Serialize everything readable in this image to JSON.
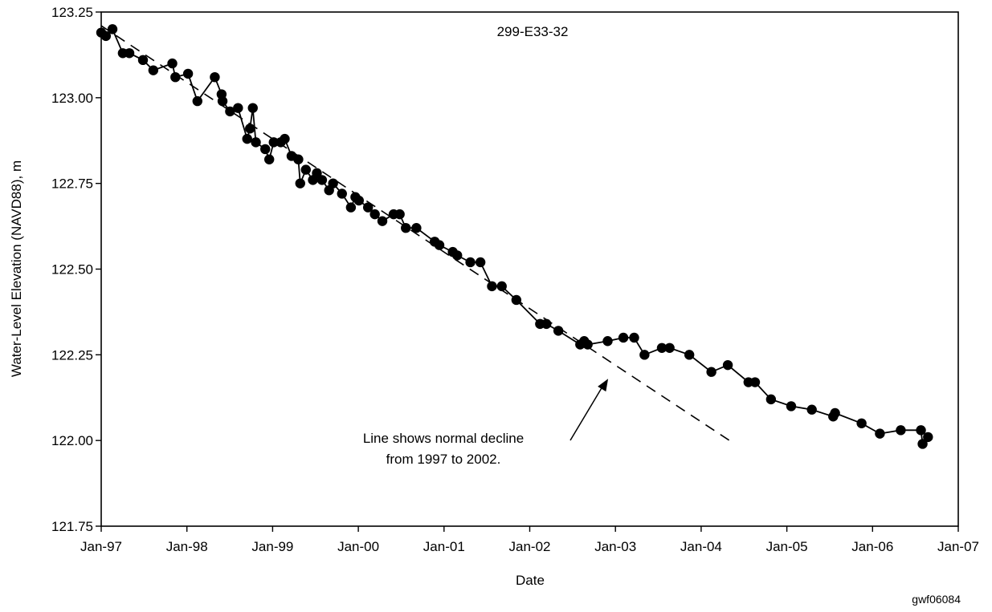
{
  "chart_data": {
    "type": "line",
    "title": "299-E33-32",
    "xlabel": "Date",
    "ylabel": "Water-Level Elevation (NAVD88), m",
    "xlim": [
      "1997-01-01",
      "2007-01-01"
    ],
    "ylim": [
      121.75,
      123.25
    ],
    "x_ticks": [
      "Jan-97",
      "Jan-98",
      "Jan-99",
      "Jan-00",
      "Jan-01",
      "Jan-02",
      "Jan-03",
      "Jan-04",
      "Jan-05",
      "Jan-06",
      "Jan-07"
    ],
    "y_ticks": [
      "123.25",
      "123.00",
      "122.75",
      "122.50",
      "122.25",
      "122.00",
      "121.75"
    ],
    "grid": false,
    "series": [
      {
        "values": [
          [
            "1997-01-01",
            123.19
          ],
          [
            "1997-01-21",
            123.18
          ],
          [
            "1997-02-18",
            123.2
          ],
          [
            "1997-04-03",
            123.13
          ],
          [
            "1997-05-01",
            123.13
          ],
          [
            "1997-06-28",
            123.11
          ],
          [
            "1997-08-11",
            123.08
          ],
          [
            "1997-10-31",
            123.1
          ],
          [
            "1997-11-13",
            123.06
          ],
          [
            "1998-01-06",
            123.07
          ],
          [
            "1998-02-15",
            122.99
          ],
          [
            "1998-04-30",
            123.06
          ],
          [
            "1998-05-29",
            123.01
          ],
          [
            "1998-06-02",
            122.99
          ],
          [
            "1998-07-04",
            122.96
          ],
          [
            "1998-08-07",
            122.97
          ],
          [
            "1998-09-15",
            122.88
          ],
          [
            "1998-09-27",
            122.91
          ],
          [
            "1998-10-09",
            122.97
          ],
          [
            "1998-10-22",
            122.87
          ],
          [
            "1998-12-01",
            122.85
          ],
          [
            "1998-12-18",
            122.82
          ],
          [
            "1999-01-06",
            122.87
          ],
          [
            "1999-02-05",
            122.87
          ],
          [
            "1999-02-22",
            122.88
          ],
          [
            "1999-03-23",
            122.83
          ],
          [
            "1999-04-21",
            122.82
          ],
          [
            "1999-04-29",
            122.75
          ],
          [
            "1999-05-23",
            122.79
          ],
          [
            "1999-06-22",
            122.76
          ],
          [
            "1999-07-09",
            122.78
          ],
          [
            "1999-07-31",
            122.76
          ],
          [
            "1999-08-30",
            122.73
          ],
          [
            "1999-09-16",
            122.75
          ],
          [
            "1999-10-24",
            122.72
          ],
          [
            "1999-12-01",
            122.68
          ],
          [
            "1999-12-20",
            122.71
          ],
          [
            "2000-01-04",
            122.7
          ],
          [
            "2000-02-12",
            122.68
          ],
          [
            "2000-03-12",
            122.66
          ],
          [
            "2000-04-13",
            122.64
          ],
          [
            "2000-05-31",
            122.66
          ],
          [
            "2000-06-26",
            122.66
          ],
          [
            "2000-07-22",
            122.62
          ],
          [
            "2000-09-05",
            122.62
          ],
          [
            "2000-11-22",
            122.58
          ],
          [
            "2000-12-12",
            122.57
          ],
          [
            "2001-02-07",
            122.55
          ],
          [
            "2001-02-26",
            122.54
          ],
          [
            "2001-04-23",
            122.52
          ],
          [
            "2001-06-05",
            122.52
          ],
          [
            "2001-07-24",
            122.45
          ],
          [
            "2001-09-04",
            122.45
          ],
          [
            "2001-11-05",
            122.41
          ],
          [
            "2002-02-14",
            122.34
          ],
          [
            "2002-03-13",
            122.34
          ],
          [
            "2002-05-03",
            122.32
          ],
          [
            "2002-08-04",
            122.28
          ],
          [
            "2002-08-21",
            122.29
          ],
          [
            "2002-09-05",
            122.28
          ],
          [
            "2002-11-29",
            122.29
          ],
          [
            "2003-02-04",
            122.3
          ],
          [
            "2003-03-22",
            122.3
          ],
          [
            "2003-05-05",
            122.25
          ],
          [
            "2003-07-18",
            122.27
          ],
          [
            "2003-08-20",
            122.27
          ],
          [
            "2003-11-12",
            122.25
          ],
          [
            "2004-02-14",
            122.2
          ],
          [
            "2004-04-24",
            122.22
          ],
          [
            "2004-07-21",
            122.17
          ],
          [
            "2004-08-18",
            122.17
          ],
          [
            "2004-10-25",
            122.12
          ],
          [
            "2005-01-19",
            122.1
          ],
          [
            "2005-04-17",
            122.09
          ],
          [
            "2005-07-17",
            122.07
          ],
          [
            "2005-07-25",
            122.08
          ],
          [
            "2005-11-15",
            122.05
          ],
          [
            "2006-02-01",
            122.02
          ],
          [
            "2006-05-01",
            122.03
          ],
          [
            "2006-07-26",
            122.03
          ],
          [
            "2006-08-02",
            121.99
          ],
          [
            "2006-08-25",
            122.01
          ]
        ]
      }
    ],
    "trend_line": {
      "style": "dashed",
      "values": [
        [
          "1997-01-01",
          123.21
        ],
        [
          "2004-05-01",
          122.0
        ]
      ]
    },
    "annotations": [
      {
        "lines": [
          "Line shows normal decline",
          "from 1997 to 2002."
        ],
        "arrow_to": [
          "2002-12-01",
          122.18
        ]
      }
    ],
    "figure_id": "gwf06084"
  }
}
